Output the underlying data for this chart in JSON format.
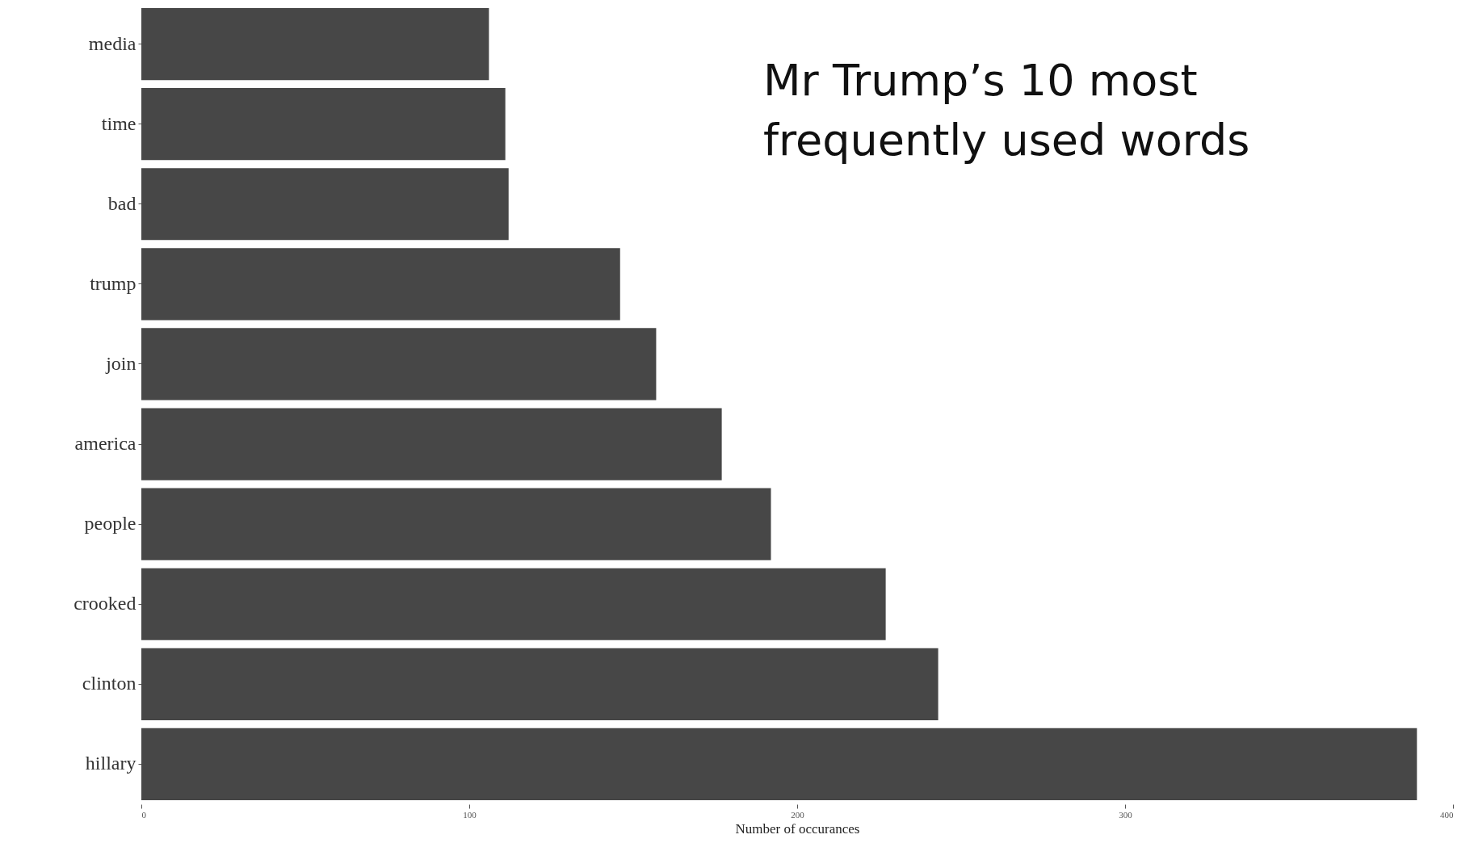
{
  "chart_data": {
    "type": "bar",
    "orientation": "horizontal",
    "title": "Mr Trump’s 10 most frequently used words",
    "xlabel": "Number of occurances",
    "categories": [
      "media",
      "time",
      "bad",
      "trump",
      "join",
      "america",
      "people",
      "crooked",
      "clinton",
      "hillary"
    ],
    "values": [
      106,
      111,
      112,
      146,
      157,
      177,
      192,
      227,
      243,
      389
    ],
    "color": "#474747",
    "xlim": [
      0,
      400
    ],
    "xticks": [
      0,
      100,
      200,
      300,
      400
    ],
    "grid": false
  }
}
